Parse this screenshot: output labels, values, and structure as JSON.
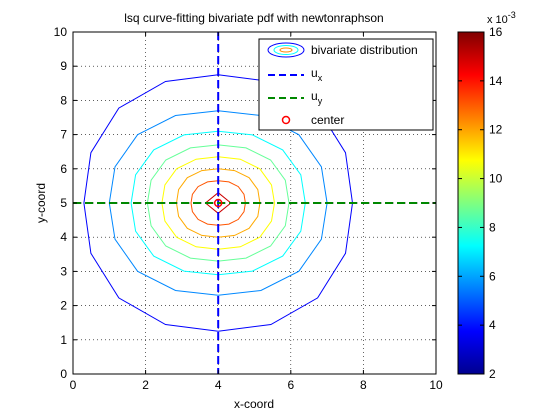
{
  "chart_data": {
    "type": "contour",
    "title": "lsq curve-fitting bivariate pdf with newtonraphson",
    "xlabel": "x-coord",
    "ylabel": "y-coord",
    "xlim": [
      0,
      10
    ],
    "ylim": [
      0,
      10
    ],
    "xticks": [
      0,
      2,
      4,
      6,
      8,
      10
    ],
    "yticks": [
      0,
      1,
      2,
      3,
      4,
      5,
      6,
      7,
      8,
      9,
      10
    ],
    "grid": true,
    "center": {
      "x": 4,
      "y": 5
    },
    "contour_levels": [
      {
        "value": 0.002,
        "rx": 3.7,
        "ry": 3.75,
        "color": "#0000ff"
      },
      {
        "value": 0.004,
        "rx": 3.0,
        "ry": 2.7,
        "color": "#0088ff"
      },
      {
        "value": 0.006,
        "rx": 2.4,
        "ry": 2.1,
        "color": "#00ffff"
      },
      {
        "value": 0.008,
        "rx": 1.95,
        "ry": 1.7,
        "color": "#66ff99"
      },
      {
        "value": 0.01,
        "rx": 1.55,
        "ry": 1.35,
        "color": "#ffff00"
      },
      {
        "value": 0.012,
        "rx": 1.15,
        "ry": 1.0,
        "color": "#ffaa00"
      },
      {
        "value": 0.014,
        "rx": 0.75,
        "ry": 0.65,
        "color": "#ff5500"
      },
      {
        "value": 0.016,
        "rx": 0.35,
        "ry": 0.3,
        "color": "#cc0000"
      }
    ],
    "series": [
      {
        "name": "bivariate distribution",
        "type": "contour"
      },
      {
        "name": "u_x",
        "type": "vline",
        "x": 4,
        "color": "#0000ff",
        "dash": true
      },
      {
        "name": "u_y",
        "type": "hline",
        "y": 5,
        "color": "#008800",
        "dash": true
      },
      {
        "name": "center",
        "type": "marker",
        "x": 4,
        "y": 5,
        "color": "#ff0000"
      }
    ],
    "legend": {
      "position": "top-right",
      "entries": [
        "bivariate distribution",
        "u",
        "u",
        "center"
      ],
      "subscripts": [
        "",
        "x",
        "y",
        ""
      ]
    },
    "colorbar": {
      "min": 2,
      "max": 16,
      "ticks": [
        2,
        4,
        6,
        8,
        10,
        12,
        14,
        16
      ],
      "multiplier_base": "x 10",
      "multiplier_exp": "-3"
    }
  }
}
